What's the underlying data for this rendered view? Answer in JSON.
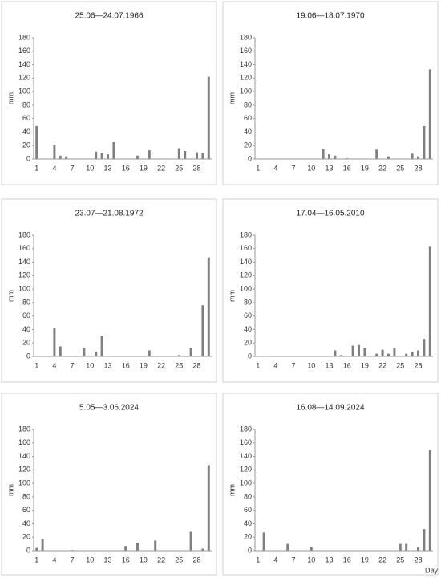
{
  "chart_data": [
    {
      "type": "bar",
      "title": "25.06—24.07.1966",
      "y_label": "mm",
      "color": "#7f7f7f",
      "categories": [
        "1",
        null,
        null,
        "4",
        null,
        null,
        "7",
        null,
        null,
        "10",
        null,
        null,
        "13",
        null,
        null,
        "16",
        null,
        null,
        "19",
        null,
        null,
        "22",
        null,
        null,
        "25",
        null,
        null,
        "28",
        null,
        null
      ],
      "values": [
        49,
        0,
        0,
        21,
        5,
        4,
        0,
        0,
        0,
        0,
        11,
        9,
        7,
        25,
        0,
        0,
        0,
        5,
        0,
        13,
        0,
        0,
        0,
        0,
        16,
        12,
        0,
        10,
        9,
        122
      ],
      "ylim": [
        0,
        180
      ],
      "yticks": [
        0,
        20,
        40,
        60,
        80,
        100,
        120,
        140,
        160,
        180
      ]
    },
    {
      "type": "bar",
      "title": "19.06—18.07.1970",
      "y_label": "mm",
      "color": "#7f7f7f",
      "categories": [
        "1",
        null,
        null,
        "4",
        null,
        null,
        "7",
        null,
        null,
        "10",
        null,
        null,
        "13",
        null,
        null,
        "16",
        null,
        null,
        "19",
        null,
        null,
        "22",
        null,
        null,
        "25",
        null,
        null,
        "28",
        null,
        null
      ],
      "values": [
        0,
        0,
        0,
        0,
        0,
        0,
        0,
        0,
        0,
        0,
        0,
        15,
        7,
        5,
        0,
        1,
        0,
        0,
        0,
        0,
        14,
        0,
        4,
        0,
        0,
        0,
        8,
        4,
        49,
        133
      ],
      "ylim": [
        0,
        180
      ],
      "yticks": [
        0,
        20,
        40,
        60,
        80,
        100,
        120,
        140,
        160,
        180
      ]
    },
    {
      "type": "bar",
      "title": "23.07—21.08.1972",
      "y_label": "mm",
      "color": "#7f7f7f",
      "categories": [
        "1",
        null,
        null,
        "4",
        null,
        null,
        "7",
        null,
        null,
        "10",
        null,
        null,
        "13",
        null,
        null,
        "16",
        null,
        null,
        "19",
        null,
        null,
        "22",
        null,
        null,
        "25",
        null,
        null,
        "28",
        null,
        null
      ],
      "values": [
        0,
        0,
        1,
        42,
        15,
        0,
        0,
        0,
        13,
        0,
        7,
        31,
        1,
        0,
        0,
        0,
        0,
        0,
        0,
        9,
        0,
        0,
        0,
        0,
        2,
        0,
        13,
        0,
        76,
        147
      ],
      "ylim": [
        0,
        180
      ],
      "yticks": [
        0,
        20,
        40,
        60,
        80,
        100,
        120,
        140,
        160,
        180
      ]
    },
    {
      "type": "bar",
      "title": "17.04—16.05.2010",
      "y_label": "mm",
      "color": "#7f7f7f",
      "categories": [
        "1",
        null,
        null,
        "4",
        null,
        null,
        "7",
        null,
        null,
        "10",
        null,
        null,
        "13",
        null,
        null,
        "16",
        null,
        null,
        "19",
        null,
        null,
        "22",
        null,
        null,
        "25",
        null,
        null,
        "28",
        null,
        null
      ],
      "values": [
        0,
        1,
        0,
        0,
        0,
        0,
        0,
        0,
        0,
        0,
        0,
        0,
        0,
        9,
        2,
        0,
        16,
        17,
        13,
        0,
        4,
        10,
        4,
        12,
        0,
        4,
        7,
        9,
        26,
        163
      ],
      "ylim": [
        0,
        180
      ],
      "yticks": [
        0,
        20,
        40,
        60,
        80,
        100,
        120,
        140,
        160,
        180
      ]
    },
    {
      "type": "bar",
      "title": "5.05—3.06.2024",
      "y_label": "mm",
      "color": "#7f7f7f",
      "categories": [
        "1",
        null,
        null,
        "4",
        null,
        null,
        "7",
        null,
        null,
        "10",
        null,
        null,
        "13",
        null,
        null,
        "16",
        null,
        null,
        "19",
        null,
        null,
        "22",
        null,
        null,
        "25",
        null,
        null,
        "28",
        null,
        null
      ],
      "values": [
        4,
        17,
        0,
        0,
        0,
        0,
        1,
        0,
        0,
        0,
        0,
        0,
        0,
        0,
        0,
        7,
        0,
        12,
        0,
        0,
        15,
        0,
        0,
        0,
        0,
        0,
        28,
        0,
        3,
        127
      ],
      "ylim": [
        0,
        180
      ],
      "yticks": [
        0,
        20,
        40,
        60,
        80,
        100,
        120,
        140,
        160,
        180
      ]
    },
    {
      "type": "bar",
      "title": "16.08—14.09.2024",
      "y_label": "mm",
      "x_label": "Day",
      "color": "#7f7f7f",
      "categories": [
        "1",
        null,
        null,
        "4",
        null,
        null,
        "7",
        null,
        null,
        "10",
        null,
        null,
        "13",
        null,
        null,
        "16",
        null,
        null,
        "19",
        null,
        null,
        "22",
        null,
        null,
        "25",
        null,
        null,
        "28",
        null,
        null
      ],
      "values": [
        0,
        27,
        0,
        0,
        0,
        10,
        0,
        0,
        0,
        5,
        0,
        0,
        0,
        0,
        0,
        0,
        0,
        0,
        0,
        0,
        0,
        0,
        0,
        0,
        10,
        10,
        0,
        5,
        32,
        150
      ],
      "ylim": [
        0,
        180
      ],
      "yticks": [
        0,
        20,
        40,
        60,
        80,
        100,
        120,
        140,
        160,
        180
      ]
    }
  ]
}
